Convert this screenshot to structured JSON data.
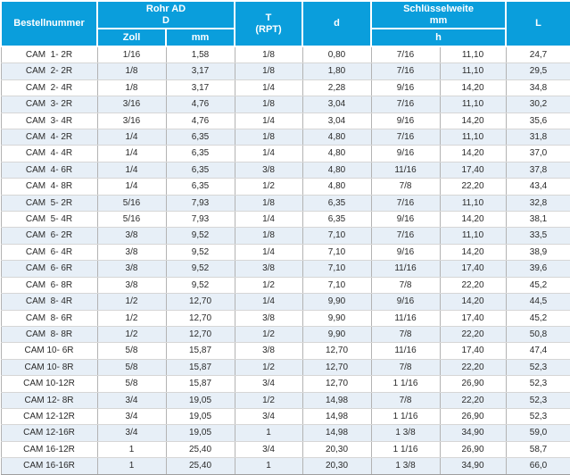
{
  "table": {
    "header": {
      "bestellnummer": "Bestellnummer",
      "rohr_ad_line1": "Rohr AD",
      "rohr_ad_line2": "D",
      "zoll": "Zoll",
      "mm": "mm",
      "t_line1": "T",
      "t_line2": "(RPT)",
      "d": "d",
      "schluesselweite_line1": "Schlüsselweite",
      "schluesselweite_line2": "mm",
      "h": "h",
      "l": "L"
    },
    "rows": [
      [
        "CAM  1- 2R",
        "1/16",
        "1,58",
        "1/8",
        "0,80",
        "7/16",
        "11,10",
        "24,7"
      ],
      [
        "CAM  2- 2R",
        "1/8",
        "3,17",
        "1/8",
        "1,80",
        "7/16",
        "11,10",
        "29,5"
      ],
      [
        "CAM  2- 4R",
        "1/8",
        "3,17",
        "1/4",
        "2,28",
        "9/16",
        "14,20",
        "34,8"
      ],
      [
        "CAM  3- 2R",
        "3/16",
        "4,76",
        "1/8",
        "3,04",
        "7/16",
        "11,10",
        "30,2"
      ],
      [
        "CAM  3- 4R",
        "3/16",
        "4,76",
        "1/4",
        "3,04",
        "9/16",
        "14,20",
        "35,6"
      ],
      [
        "CAM  4- 2R",
        "1/4",
        "6,35",
        "1/8",
        "4,80",
        "7/16",
        "11,10",
        "31,8"
      ],
      [
        "CAM  4- 4R",
        "1/4",
        "6,35",
        "1/4",
        "4,80",
        "9/16",
        "14,20",
        "37,0"
      ],
      [
        "CAM  4- 6R",
        "1/4",
        "6,35",
        "3/8",
        "4,80",
        "11/16",
        "17,40",
        "37,8"
      ],
      [
        "CAM  4- 8R",
        "1/4",
        "6,35",
        "1/2",
        "4,80",
        "7/8",
        "22,20",
        "43,4"
      ],
      [
        "CAM  5- 2R",
        "5/16",
        "7,93",
        "1/8",
        "6,35",
        "7/16",
        "11,10",
        "32,8"
      ],
      [
        "CAM  5- 4R",
        "5/16",
        "7,93",
        "1/4",
        "6,35",
        "9/16",
        "14,20",
        "38,1"
      ],
      [
        "CAM  6- 2R",
        "3/8",
        "9,52",
        "1/8",
        "7,10",
        "7/16",
        "11,10",
        "33,5"
      ],
      [
        "CAM  6- 4R",
        "3/8",
        "9,52",
        "1/4",
        "7,10",
        "9/16",
        "14,20",
        "38,9"
      ],
      [
        "CAM  6- 6R",
        "3/8",
        "9,52",
        "3/8",
        "7,10",
        "11/16",
        "17,40",
        "39,6"
      ],
      [
        "CAM  6- 8R",
        "3/8",
        "9,52",
        "1/2",
        "7,10",
        "7/8",
        "22,20",
        "45,2"
      ],
      [
        "CAM  8- 4R",
        "1/2",
        "12,70",
        "1/4",
        "9,90",
        "9/16",
        "14,20",
        "44,5"
      ],
      [
        "CAM  8- 6R",
        "1/2",
        "12,70",
        "3/8",
        "9,90",
        "11/16",
        "17,40",
        "45,2"
      ],
      [
        "CAM  8- 8R",
        "1/2",
        "12,70",
        "1/2",
        "9,90",
        "7/8",
        "22,20",
        "50,8"
      ],
      [
        "CAM 10- 6R",
        "5/8",
        "15,87",
        "3/8",
        "12,70",
        "11/16",
        "17,40",
        "47,4"
      ],
      [
        "CAM 10- 8R",
        "5/8",
        "15,87",
        "1/2",
        "12,70",
        "7/8",
        "22,20",
        "52,3"
      ],
      [
        "CAM 10-12R",
        "5/8",
        "15,87",
        "3/4",
        "12,70",
        "1 1/16",
        "26,90",
        "52,3"
      ],
      [
        "CAM 12- 8R",
        "3/4",
        "19,05",
        "1/2",
        "14,98",
        "7/8",
        "22,20",
        "52,3"
      ],
      [
        "CAM 12-12R",
        "3/4",
        "19,05",
        "3/4",
        "14,98",
        "1 1/16",
        "26,90",
        "52,3"
      ],
      [
        "CAM 12-16R",
        "3/4",
        "19,05",
        "1",
        "14,98",
        "1 3/8",
        "34,90",
        "59,0"
      ],
      [
        "CAM 16-12R",
        "1",
        "25,40",
        "3/4",
        "20,30",
        "1 1/16",
        "26,90",
        "58,7"
      ],
      [
        "CAM 16-16R",
        "1",
        "25,40",
        "1",
        "20,30",
        "1 3/8",
        "34,90",
        "66,0"
      ]
    ]
  },
  "colors": {
    "header_bg": "#0a9edc",
    "header_text": "#ffffff",
    "row_alt_bg": "#e7eff7",
    "grid_vertical": "#b3b3b3",
    "grid_horizontal": "#d6d6d6"
  }
}
